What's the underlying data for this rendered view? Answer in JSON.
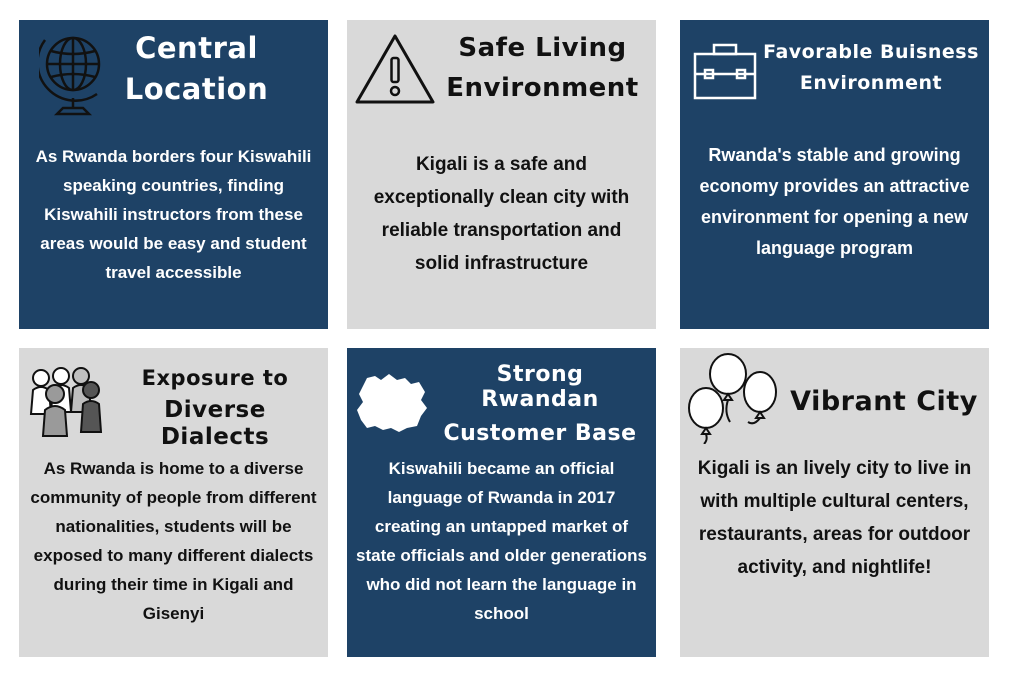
{
  "colors": {
    "dark_tile": "#1e4266",
    "light_tile": "#d9d9d9",
    "dark_text": "#ffffff",
    "light_text": "#111111"
  },
  "tiles": [
    {
      "icon": "globe-icon",
      "title_line1": "Central",
      "title_line2": "Location",
      "body": "As Rwanda borders four Kiswahili speaking countries, finding Kiswahili instructors from these areas would be easy and student travel accessible"
    },
    {
      "icon": "warning-icon",
      "title_line1": "Safe Living",
      "title_line2": "Environment",
      "body": "Kigali is a safe and exceptionally clean city with reliable transportation and solid infrastructure"
    },
    {
      "icon": "briefcase-icon",
      "title_line1": "Favorable Buisness",
      "title_line2": "Environment",
      "body": "Rwanda's stable and growing economy  provides an attractive environment for opening a new language program"
    },
    {
      "icon": "people-icon",
      "title_line1": "Exposure to",
      "title_line2": "Diverse Dialects",
      "body": "As Rwanda is home to a diverse community of people from different nationalities, students will be exposed to many different dialects during their time in Kigali and Gisenyi"
    },
    {
      "icon": "rwanda-map-icon",
      "title_line1": "Strong Rwandan",
      "title_line2": "Customer Base",
      "body": "Kiswahili became an official language of Rwanda in 2017 creating an untapped market of state officials and older generations who did not learn the language in school"
    },
    {
      "icon": "balloons-icon",
      "title_line1": "Vibrant City",
      "title_line2": "",
      "body": "Kigali is an lively city to live in with multiple  cultural centers, restaurants, areas for outdoor activity, and nightlife!"
    }
  ]
}
